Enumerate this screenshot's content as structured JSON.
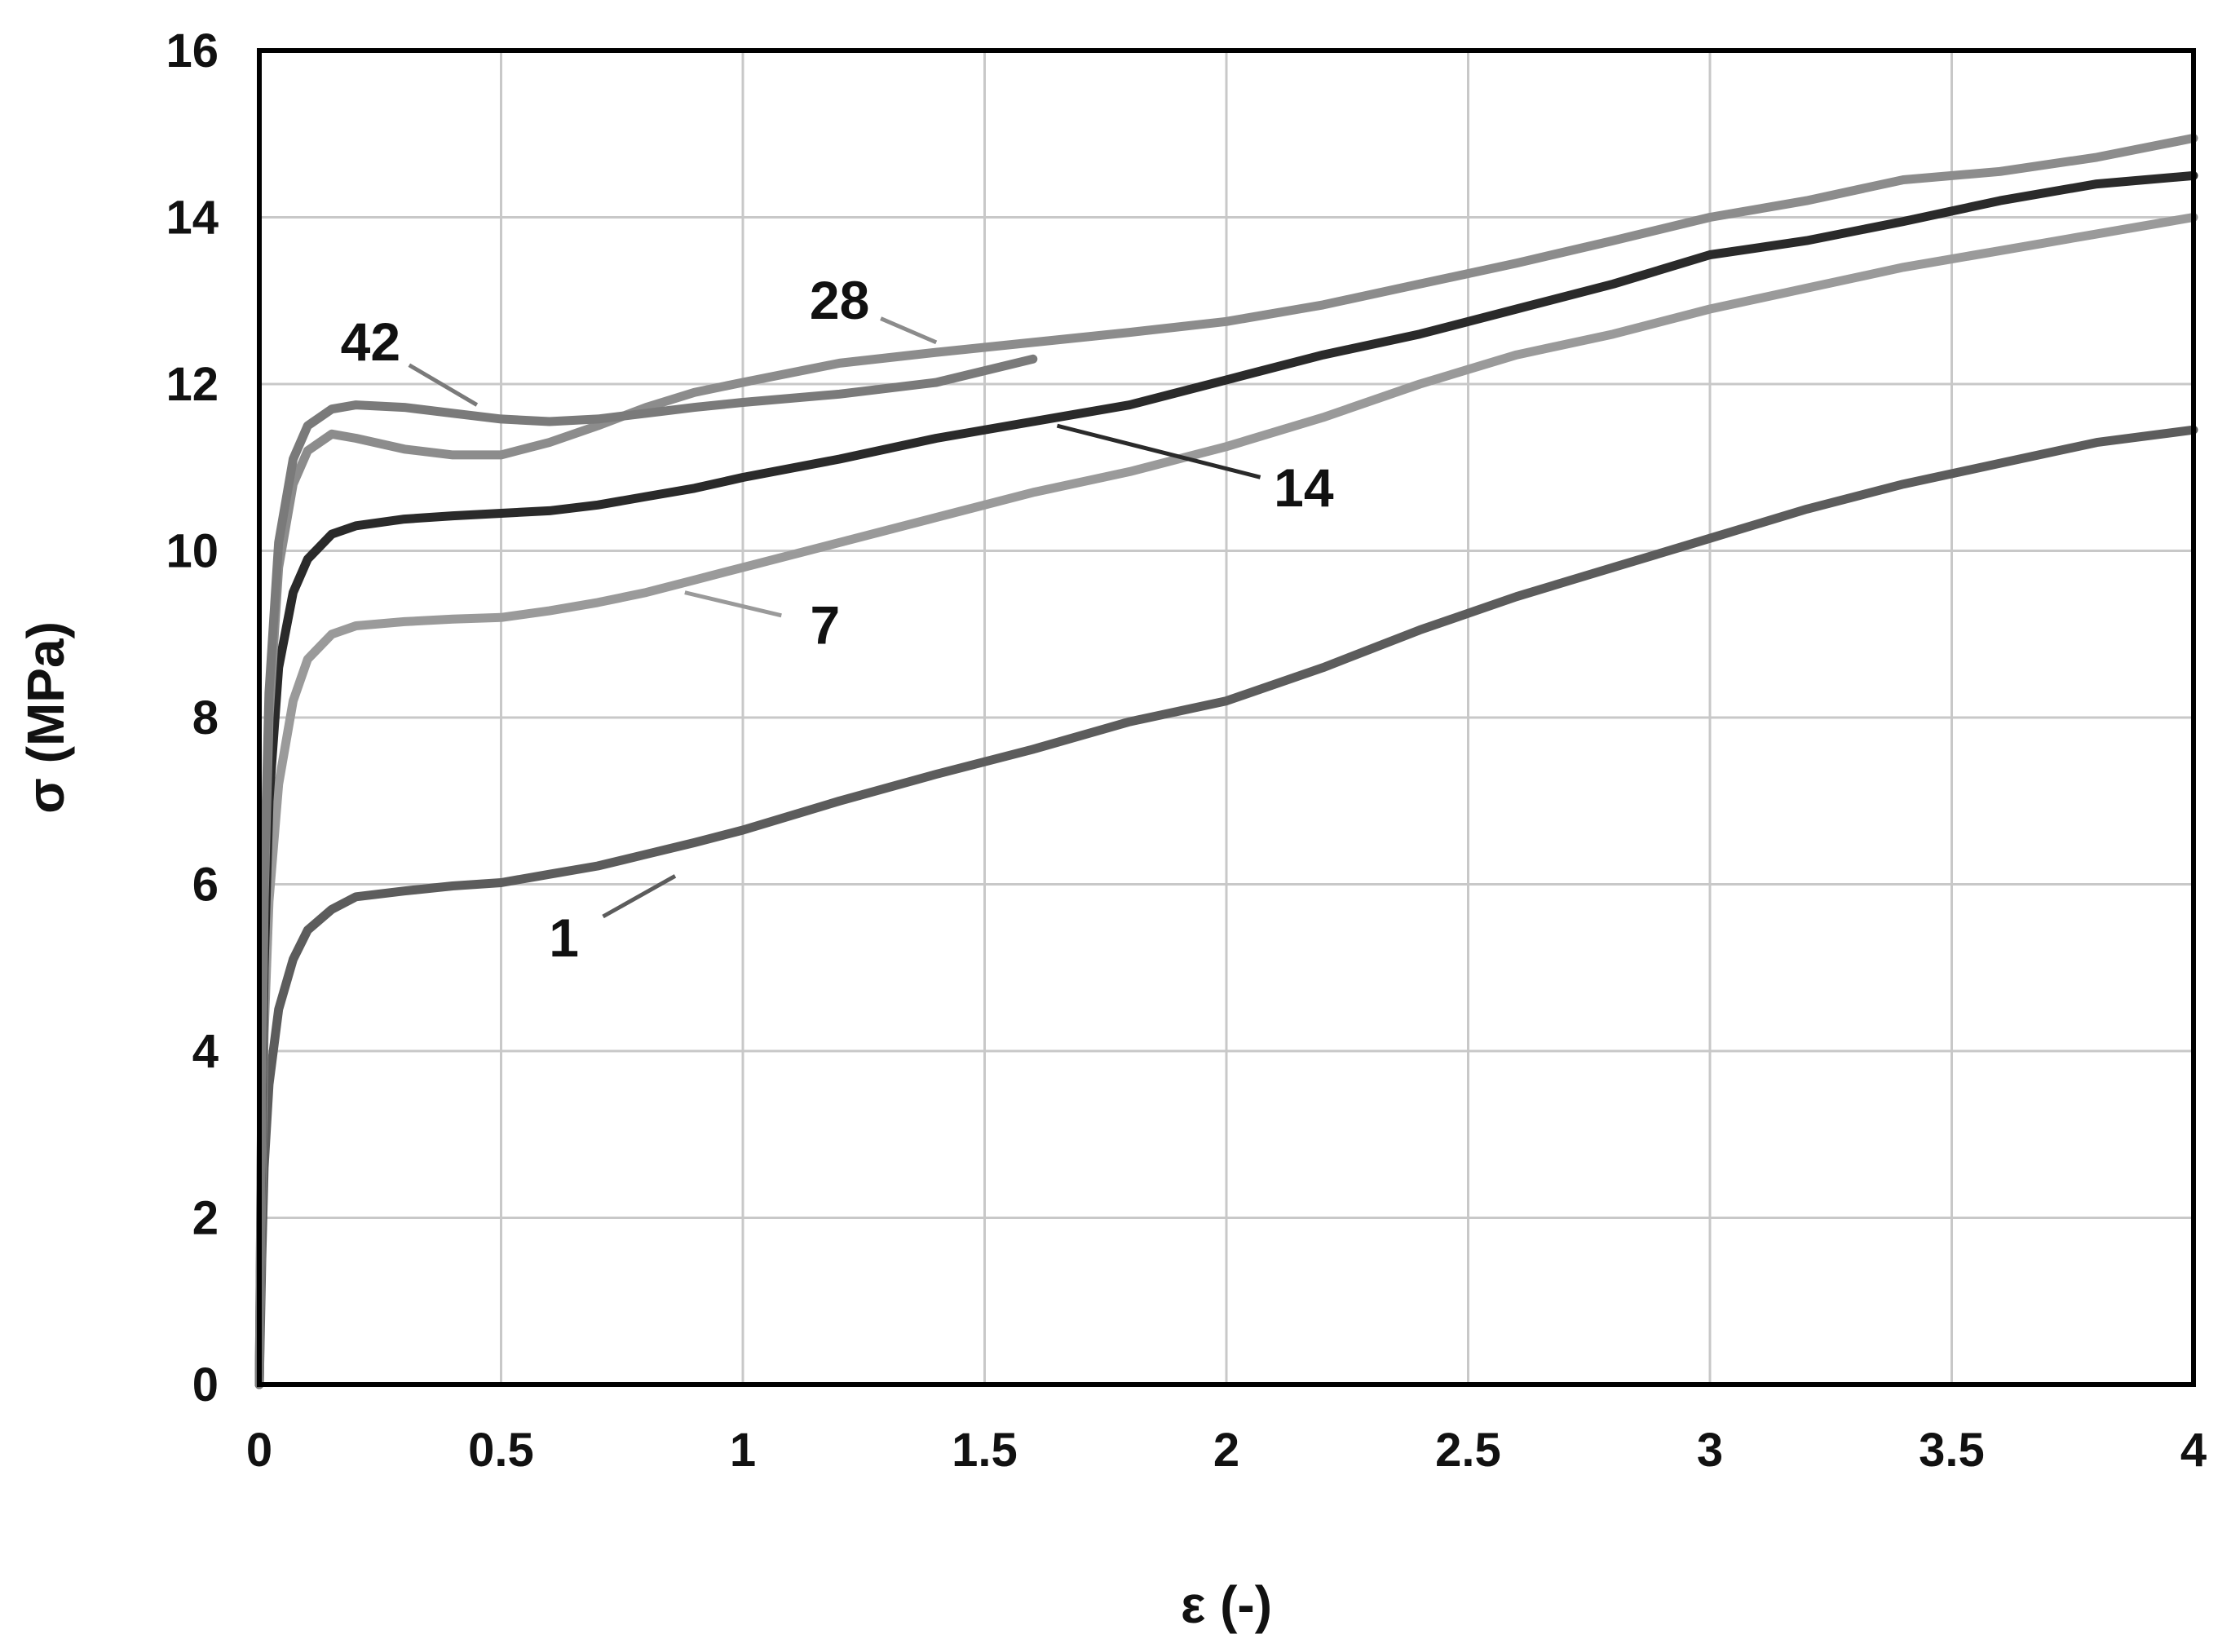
{
  "chart_data": {
    "type": "line",
    "xlabel": "ε (-)",
    "ylabel": "σ (MPa)",
    "xlim": [
      0,
      4
    ],
    "ylim": [
      0,
      16
    ],
    "xticks": [
      "0",
      "0.5",
      "1",
      "1.5",
      "2",
      "2.5",
      "3",
      "3.5",
      "4"
    ],
    "yticks": [
      "0",
      "2",
      "4",
      "6",
      "8",
      "10",
      "12",
      "14",
      "16"
    ],
    "grid": true,
    "legend": "none",
    "series": [
      {
        "name": "1",
        "color": "#5c5c5c",
        "label_at": [
          0.63,
          5.35
        ],
        "leader_to": [
          0.86,
          6.1
        ],
        "points": [
          [
            0,
            0
          ],
          [
            0.005,
            1.5
          ],
          [
            0.01,
            2.6
          ],
          [
            0.02,
            3.6
          ],
          [
            0.04,
            4.5
          ],
          [
            0.07,
            5.1
          ],
          [
            0.1,
            5.45
          ],
          [
            0.15,
            5.7
          ],
          [
            0.2,
            5.85
          ],
          [
            0.3,
            5.92
          ],
          [
            0.4,
            5.98
          ],
          [
            0.5,
            6.02
          ],
          [
            0.6,
            6.12
          ],
          [
            0.7,
            6.22
          ],
          [
            0.8,
            6.36
          ],
          [
            0.9,
            6.5
          ],
          [
            1.0,
            6.65
          ],
          [
            1.2,
            7.0
          ],
          [
            1.4,
            7.32
          ],
          [
            1.6,
            7.62
          ],
          [
            1.8,
            7.95
          ],
          [
            2.0,
            8.2
          ],
          [
            2.2,
            8.6
          ],
          [
            2.4,
            9.05
          ],
          [
            2.6,
            9.45
          ],
          [
            2.8,
            9.8
          ],
          [
            3.0,
            10.15
          ],
          [
            3.2,
            10.5
          ],
          [
            3.4,
            10.8
          ],
          [
            3.6,
            11.05
          ],
          [
            3.8,
            11.3
          ],
          [
            4.0,
            11.45
          ]
        ]
      },
      {
        "name": "7",
        "color": "#9a9a9a",
        "label_at": [
          1.17,
          9.1
        ],
        "leader_to": [
          0.88,
          9.5
        ],
        "points": [
          [
            0,
            0
          ],
          [
            0.005,
            2.5
          ],
          [
            0.01,
            4.2
          ],
          [
            0.02,
            5.8
          ],
          [
            0.04,
            7.2
          ],
          [
            0.07,
            8.2
          ],
          [
            0.1,
            8.7
          ],
          [
            0.15,
            9.0
          ],
          [
            0.2,
            9.1
          ],
          [
            0.3,
            9.15
          ],
          [
            0.4,
            9.18
          ],
          [
            0.5,
            9.2
          ],
          [
            0.6,
            9.28
          ],
          [
            0.7,
            9.38
          ],
          [
            0.8,
            9.5
          ],
          [
            0.9,
            9.65
          ],
          [
            1.0,
            9.8
          ],
          [
            1.2,
            10.1
          ],
          [
            1.4,
            10.4
          ],
          [
            1.6,
            10.7
          ],
          [
            1.8,
            10.95
          ],
          [
            2.0,
            11.25
          ],
          [
            2.2,
            11.6
          ],
          [
            2.4,
            12.0
          ],
          [
            2.6,
            12.35
          ],
          [
            2.8,
            12.6
          ],
          [
            3.0,
            12.9
          ],
          [
            3.2,
            13.15
          ],
          [
            3.4,
            13.4
          ],
          [
            3.6,
            13.6
          ],
          [
            3.8,
            13.8
          ],
          [
            4.0,
            14.0
          ]
        ]
      },
      {
        "name": "14",
        "color": "#2a2a2a",
        "label_at": [
          2.16,
          10.75
        ],
        "leader_to": [
          1.65,
          11.5
        ],
        "points": [
          [
            0,
            0
          ],
          [
            0.005,
            3.0
          ],
          [
            0.01,
            5.0
          ],
          [
            0.02,
            7.0
          ],
          [
            0.04,
            8.6
          ],
          [
            0.07,
            9.5
          ],
          [
            0.1,
            9.9
          ],
          [
            0.15,
            10.2
          ],
          [
            0.2,
            10.3
          ],
          [
            0.3,
            10.38
          ],
          [
            0.4,
            10.42
          ],
          [
            0.5,
            10.45
          ],
          [
            0.6,
            10.48
          ],
          [
            0.7,
            10.55
          ],
          [
            0.8,
            10.65
          ],
          [
            0.9,
            10.75
          ],
          [
            1.0,
            10.88
          ],
          [
            1.2,
            11.1
          ],
          [
            1.4,
            11.35
          ],
          [
            1.6,
            11.55
          ],
          [
            1.8,
            11.75
          ],
          [
            2.0,
            12.05
          ],
          [
            2.2,
            12.35
          ],
          [
            2.4,
            12.6
          ],
          [
            2.6,
            12.9
          ],
          [
            2.8,
            13.2
          ],
          [
            3.0,
            13.55
          ],
          [
            3.2,
            13.72
          ],
          [
            3.4,
            13.95
          ],
          [
            3.6,
            14.2
          ],
          [
            3.8,
            14.4
          ],
          [
            4.0,
            14.5
          ]
        ]
      },
      {
        "name": "28",
        "color": "#8c8c8c",
        "label_at": [
          1.2,
          13.0
        ],
        "leader_to": [
          1.4,
          12.5
        ],
        "points": [
          [
            0,
            0
          ],
          [
            0.005,
            3.5
          ],
          [
            0.01,
            5.8
          ],
          [
            0.02,
            8.0
          ],
          [
            0.04,
            9.8
          ],
          [
            0.07,
            10.8
          ],
          [
            0.1,
            11.2
          ],
          [
            0.15,
            11.4
          ],
          [
            0.2,
            11.35
          ],
          [
            0.3,
            11.22
          ],
          [
            0.4,
            11.15
          ],
          [
            0.5,
            11.15
          ],
          [
            0.6,
            11.3
          ],
          [
            0.7,
            11.5
          ],
          [
            0.8,
            11.72
          ],
          [
            0.9,
            11.9
          ],
          [
            1.0,
            12.02
          ],
          [
            1.2,
            12.25
          ],
          [
            1.4,
            12.38
          ],
          [
            1.6,
            12.5
          ],
          [
            1.8,
            12.62
          ],
          [
            2.0,
            12.75
          ],
          [
            2.2,
            12.95
          ],
          [
            2.4,
            13.2
          ],
          [
            2.6,
            13.45
          ],
          [
            2.8,
            13.72
          ],
          [
            3.0,
            14.0
          ],
          [
            3.2,
            14.2
          ],
          [
            3.4,
            14.45
          ],
          [
            3.6,
            14.55
          ],
          [
            3.8,
            14.72
          ],
          [
            4.0,
            14.95
          ]
        ]
      },
      {
        "name": "42",
        "color": "#7a7a7a",
        "label_at": [
          0.23,
          12.5
        ],
        "leader_to": [
          0.45,
          11.75
        ],
        "points": [
          [
            0,
            0
          ],
          [
            0.005,
            3.6
          ],
          [
            0.01,
            6.0
          ],
          [
            0.02,
            8.3
          ],
          [
            0.04,
            10.1
          ],
          [
            0.07,
            11.1
          ],
          [
            0.1,
            11.5
          ],
          [
            0.15,
            11.7
          ],
          [
            0.2,
            11.75
          ],
          [
            0.3,
            11.72
          ],
          [
            0.4,
            11.65
          ],
          [
            0.5,
            11.58
          ],
          [
            0.6,
            11.55
          ],
          [
            0.7,
            11.58
          ],
          [
            0.8,
            11.65
          ],
          [
            0.9,
            11.72
          ],
          [
            1.0,
            11.78
          ],
          [
            1.2,
            11.88
          ],
          [
            1.4,
            12.02
          ],
          [
            1.6,
            12.3
          ]
        ]
      }
    ]
  }
}
